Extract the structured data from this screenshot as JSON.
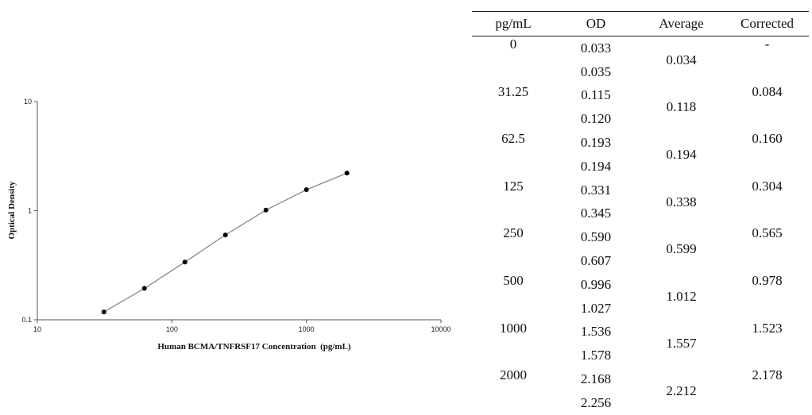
{
  "chart_data": {
    "type": "line",
    "xlabel": "Human BCMA/TNFRSF17 Concentration  (pg/mL)",
    "ylabel": "Optical Density",
    "x_scale": "log",
    "y_scale": "log",
    "xlim": [
      10,
      10000
    ],
    "ylim": [
      0.1,
      10
    ],
    "x_ticks": [
      "10",
      "100",
      "1000",
      "10000"
    ],
    "y_ticks": [
      "0.1",
      "1",
      "10"
    ],
    "grid": false,
    "series": [
      {
        "x": [
          31.25,
          62.5,
          125,
          250,
          500,
          1000,
          2000
        ],
        "y": [
          0.118,
          0.194,
          0.338,
          0.599,
          1.012,
          1.557,
          2.212
        ]
      }
    ]
  },
  "table": {
    "headers": [
      "pg/mL",
      "OD",
      "Average",
      "Corrected"
    ],
    "rows": [
      {
        "conc": "0",
        "od": [
          "0.033",
          "0.035"
        ],
        "average": "0.034",
        "corrected": "-"
      },
      {
        "conc": "31.25",
        "od": [
          "0.115",
          "0.120"
        ],
        "average": "0.118",
        "corrected": "0.084"
      },
      {
        "conc": "62.5",
        "od": [
          "0.193",
          "0.194"
        ],
        "average": "0.194",
        "corrected": "0.160"
      },
      {
        "conc": "125",
        "od": [
          "0.331",
          "0.345"
        ],
        "average": "0.338",
        "corrected": "0.304"
      },
      {
        "conc": "250",
        "od": [
          "0.590",
          "0.607"
        ],
        "average": "0.599",
        "corrected": "0.565"
      },
      {
        "conc": "500",
        "od": [
          "0.996",
          "1.027"
        ],
        "average": "1.012",
        "corrected": "0.978"
      },
      {
        "conc": "1000",
        "od": [
          "1.536",
          "1.578"
        ],
        "average": "1.557",
        "corrected": "1.523"
      },
      {
        "conc": "2000",
        "od": [
          "2.168",
          "2.256"
        ],
        "average": "2.212",
        "corrected": "2.178"
      }
    ]
  }
}
